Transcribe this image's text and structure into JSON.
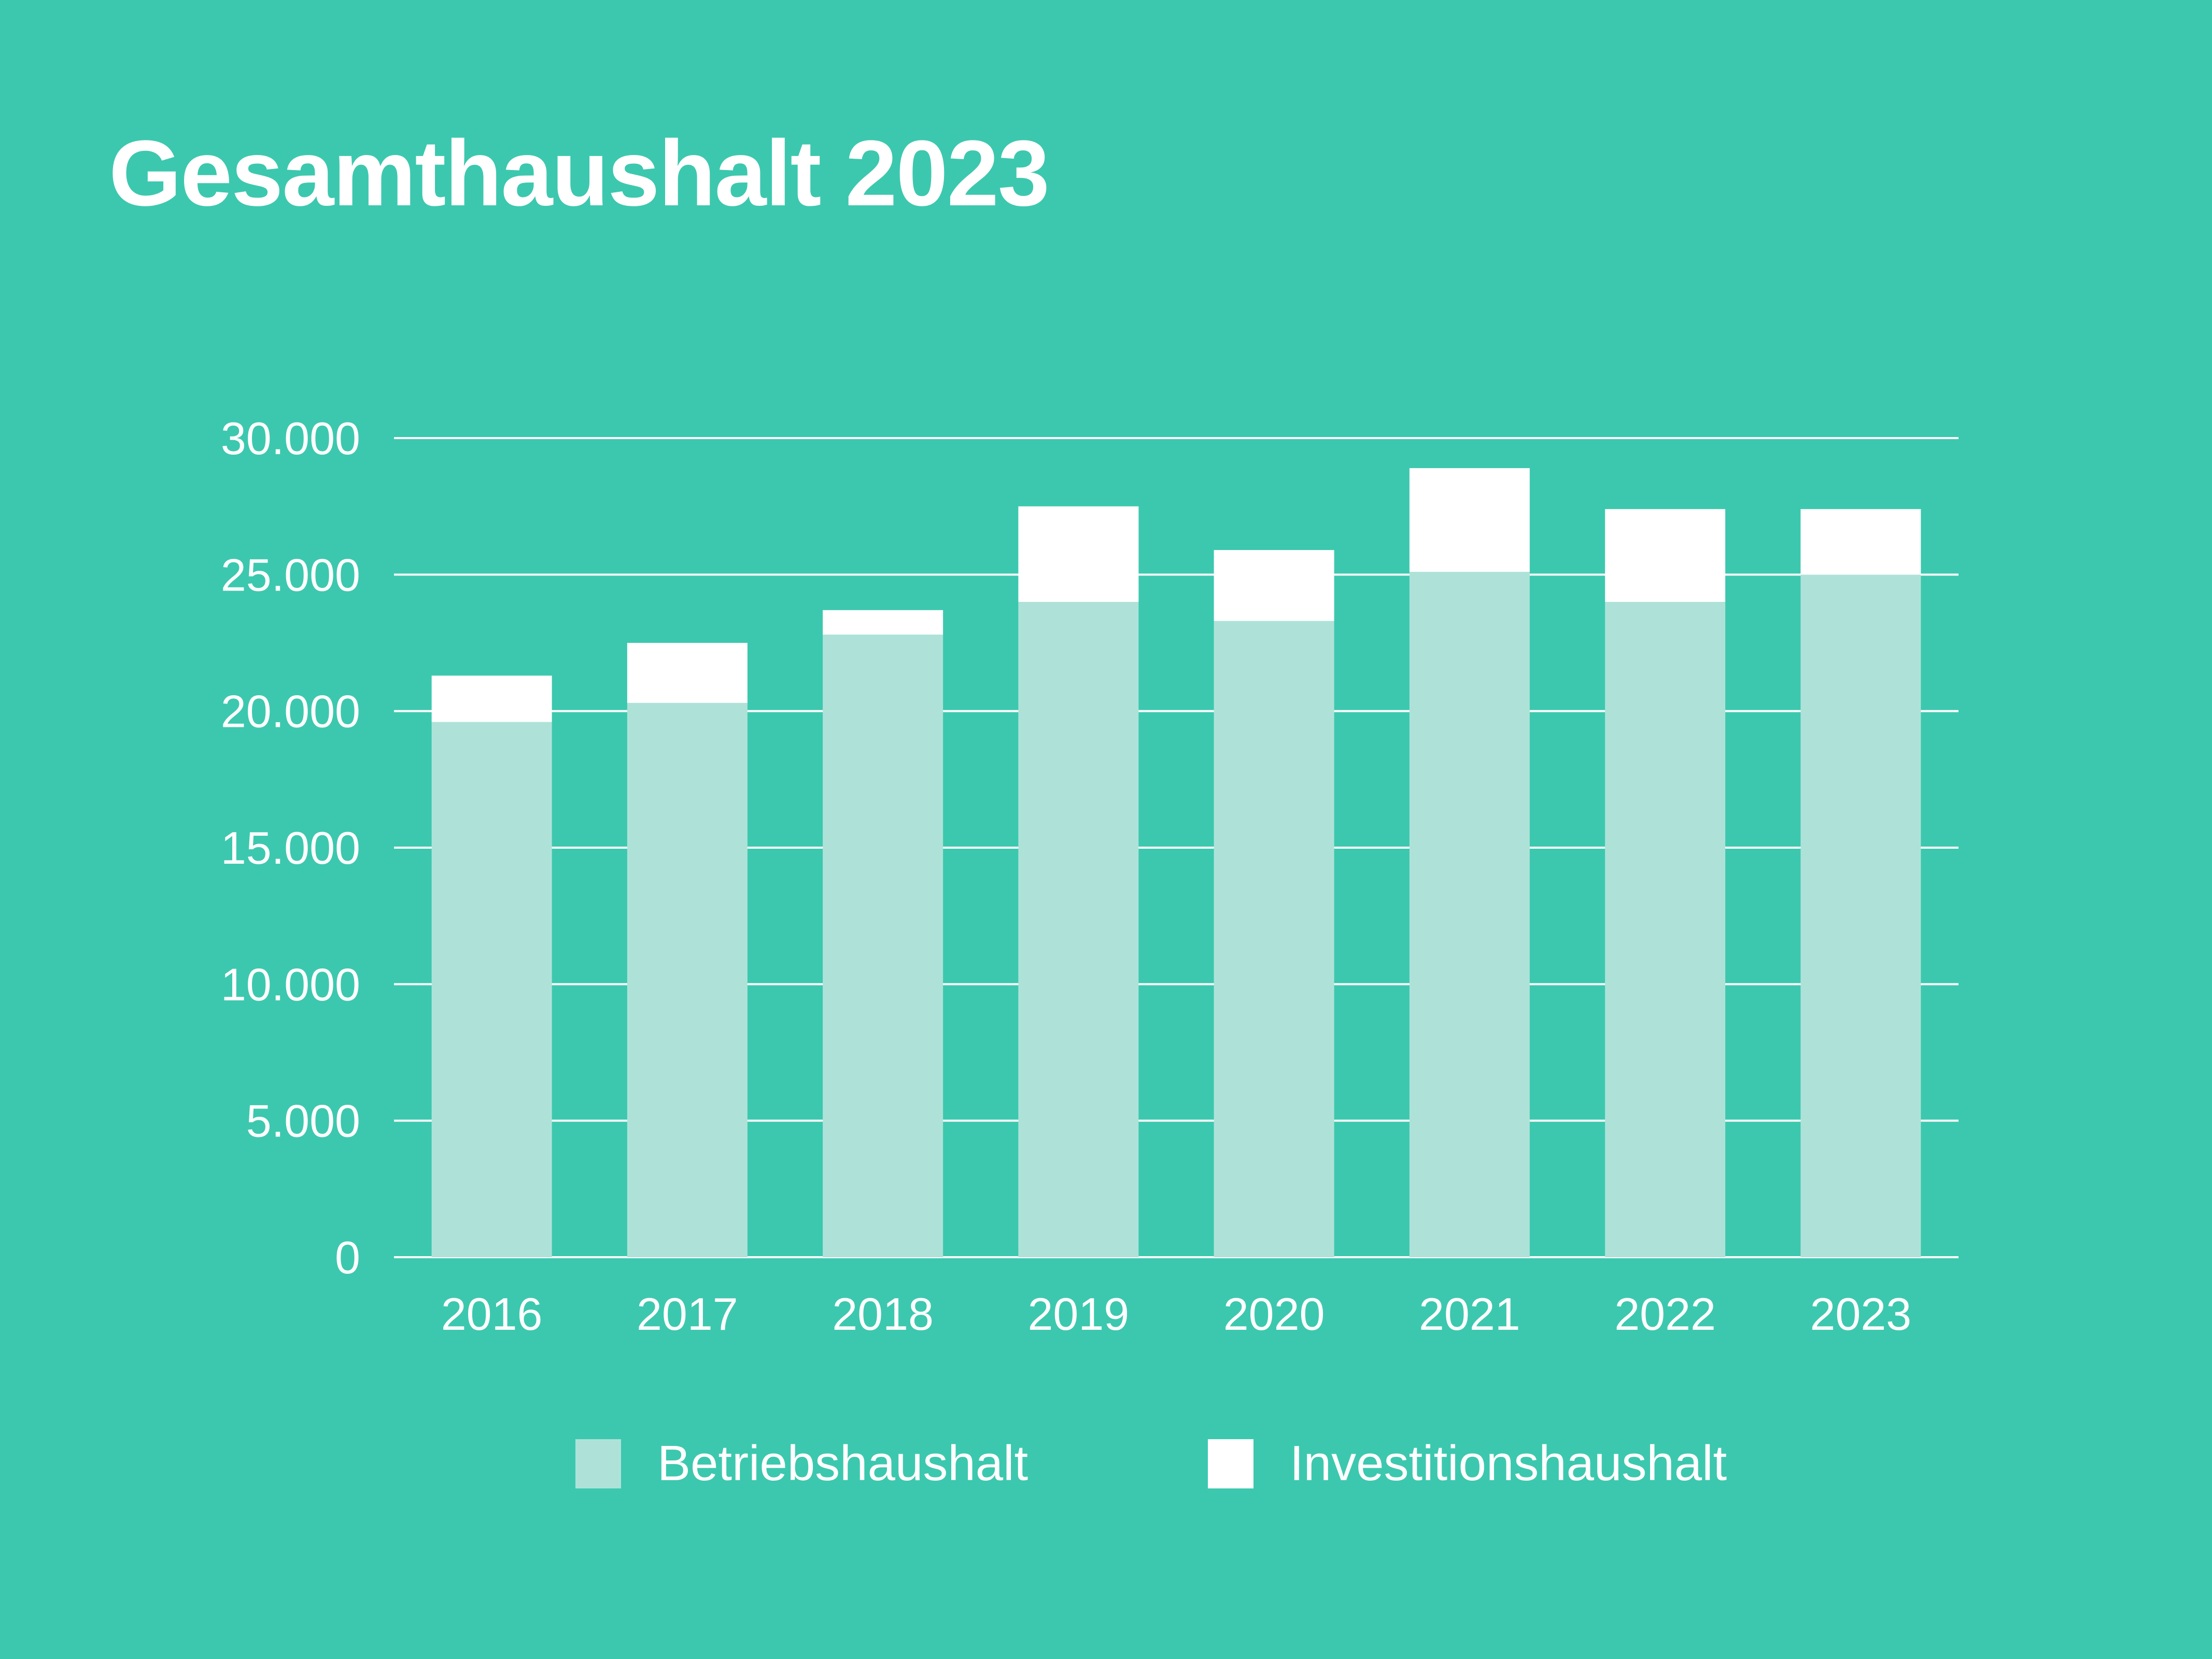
{
  "title": "Gesamthaushalt 2023",
  "colors": {
    "background": "#3cc8ae",
    "betriebshaushalt": "#aee2d8",
    "investitionshaushalt": "#ffffff",
    "gridline": "#ffffff"
  },
  "legend": {
    "items": [
      {
        "label": "Betriebshaushalt",
        "color": "#aee2d8"
      },
      {
        "label": "Investitionshaushalt",
        "color": "#ffffff"
      }
    ]
  },
  "chart_data": {
    "type": "bar",
    "stacked": true,
    "title": "Gesamthaushalt 2023",
    "xlabel": "",
    "ylabel": "",
    "ylim": [
      0,
      30000
    ],
    "grid": true,
    "legend_position": "bottom",
    "categories": [
      "2016",
      "2017",
      "2018",
      "2019",
      "2020",
      "2021",
      "2022",
      "2023"
    ],
    "y_ticks": [
      {
        "value": 0,
        "label": "0"
      },
      {
        "value": 5000,
        "label": "5.000"
      },
      {
        "value": 10000,
        "label": "10.000"
      },
      {
        "value": 15000,
        "label": "15.000"
      },
      {
        "value": 20000,
        "label": "20.000"
      },
      {
        "value": 25000,
        "label": "25.000"
      },
      {
        "value": 30000,
        "label": "30.000"
      }
    ],
    "series": [
      {
        "name": "Betriebshaushalt",
        "color": "#aee2d8",
        "values": [
          19600,
          20300,
          22800,
          24000,
          23300,
          25100,
          24000,
          25000
        ]
      },
      {
        "name": "Investitionshaushalt",
        "color": "#ffffff",
        "values": [
          1700,
          2200,
          900,
          3500,
          2600,
          3800,
          3400,
          2400
        ]
      }
    ]
  }
}
